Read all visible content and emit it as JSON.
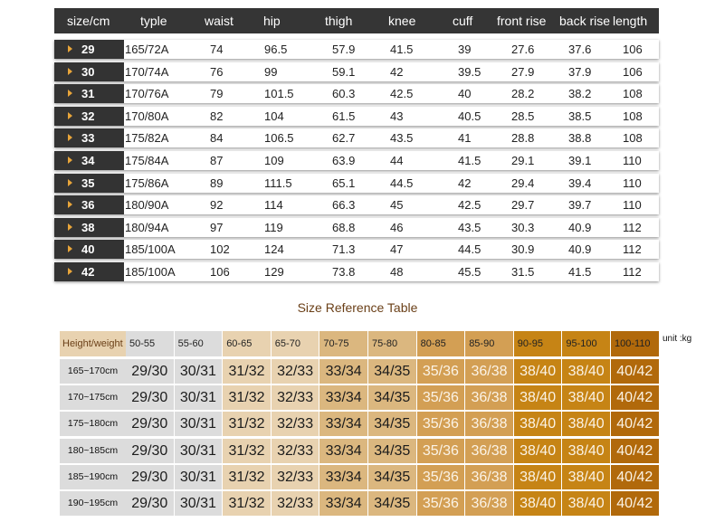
{
  "size_table": {
    "headers": [
      "size/cm",
      "typle",
      "waist",
      "hip",
      "thigh",
      "knee",
      "cuff",
      "front rise",
      "back rise",
      "length"
    ],
    "rows": [
      {
        "size": "29",
        "type": "165/72A",
        "waist": "74",
        "hip": "96.5",
        "thigh": "57.9",
        "knee": "41.5",
        "cuff": "39",
        "front_rise": "27.6",
        "back_rise": "37.6",
        "length": "106"
      },
      {
        "size": "30",
        "type": "170/74A",
        "waist": "76",
        "hip": "99",
        "thigh": "59.1",
        "knee": "42",
        "cuff": "39.5",
        "front_rise": "27.9",
        "back_rise": "37.9",
        "length": "106"
      },
      {
        "size": "31",
        "type": "170/76A",
        "waist": "79",
        "hip": "101.5",
        "thigh": "60.3",
        "knee": "42.5",
        "cuff": "40",
        "front_rise": "28.2",
        "back_rise": "38.2",
        "length": "108"
      },
      {
        "size": "32",
        "type": "170/80A",
        "waist": "82",
        "hip": "104",
        "thigh": "61.5",
        "knee": "43",
        "cuff": "40.5",
        "front_rise": "28.5",
        "back_rise": "38.5",
        "length": "108"
      },
      {
        "size": "33",
        "type": "175/82A",
        "waist": "84",
        "hip": "106.5",
        "thigh": "62.7",
        "knee": "43.5",
        "cuff": "41",
        "front_rise": "28.8",
        "back_rise": "38.8",
        "length": "108"
      },
      {
        "size": "34",
        "type": "175/84A",
        "waist": "87",
        "hip": "109",
        "thigh": "63.9",
        "knee": "44",
        "cuff": "41.5",
        "front_rise": "29.1",
        "back_rise": "39.1",
        "length": "110"
      },
      {
        "size": "35",
        "type": "175/86A",
        "waist": "89",
        "hip": "111.5",
        "thigh": "65.1",
        "knee": "44.5",
        "cuff": "42",
        "front_rise": "29.4",
        "back_rise": "39.4",
        "length": "110"
      },
      {
        "size": "36",
        "type": "180/90A",
        "waist": "92",
        "hip": "114",
        "thigh": "66.3",
        "knee": "45",
        "cuff": "42.5",
        "front_rise": "29.7",
        "back_rise": "39.7",
        "length": "110"
      },
      {
        "size": "38",
        "type": "180/94A",
        "waist": "97",
        "hip": "119",
        "thigh": "68.8",
        "knee": "46",
        "cuff": "43.5",
        "front_rise": "30.3",
        "back_rise": "40.9",
        "length": "112"
      },
      {
        "size": "40",
        "type": "185/100A",
        "waist": "102",
        "hip": "124",
        "thigh": "71.3",
        "knee": "47",
        "cuff": "44.5",
        "front_rise": "30.9",
        "back_rise": "40.9",
        "length": "112"
      },
      {
        "size": "42",
        "type": "185/100A",
        "waist": "106",
        "hip": "129",
        "thigh": "73.8",
        "knee": "48",
        "cuff": "45.5",
        "front_rise": "31.5",
        "back_rise": "41.5",
        "length": "112"
      }
    ]
  },
  "reference_title": "Size Reference Table",
  "weight_table": {
    "corner_label": "Height/weight",
    "unit": "unit :kg",
    "weights": [
      "50-55",
      "55-60",
      "60-65",
      "65-70",
      "70-75",
      "75-80",
      "80-85",
      "85-90",
      "90-95",
      "95-100",
      "100-110"
    ],
    "column_colors": [
      "#dcdcdc",
      "#dcdcdc",
      "#e8d2b0",
      "#e8d2b0",
      "#dbb77f",
      "#dbb77f",
      "#d39f54",
      "#d39f54",
      "#c68415",
      "#c68415",
      "#b1690b"
    ],
    "heights": [
      "165~170cm",
      "170~175cm",
      "175~180cm",
      "180~185cm",
      "185~190cm",
      "190~195cm"
    ],
    "sizes": [
      "29/30",
      "30/31",
      "31/32",
      "32/33",
      "33/34",
      "34/35",
      "35/36",
      "36/38",
      "38/40",
      "38/40",
      "40/42"
    ]
  }
}
